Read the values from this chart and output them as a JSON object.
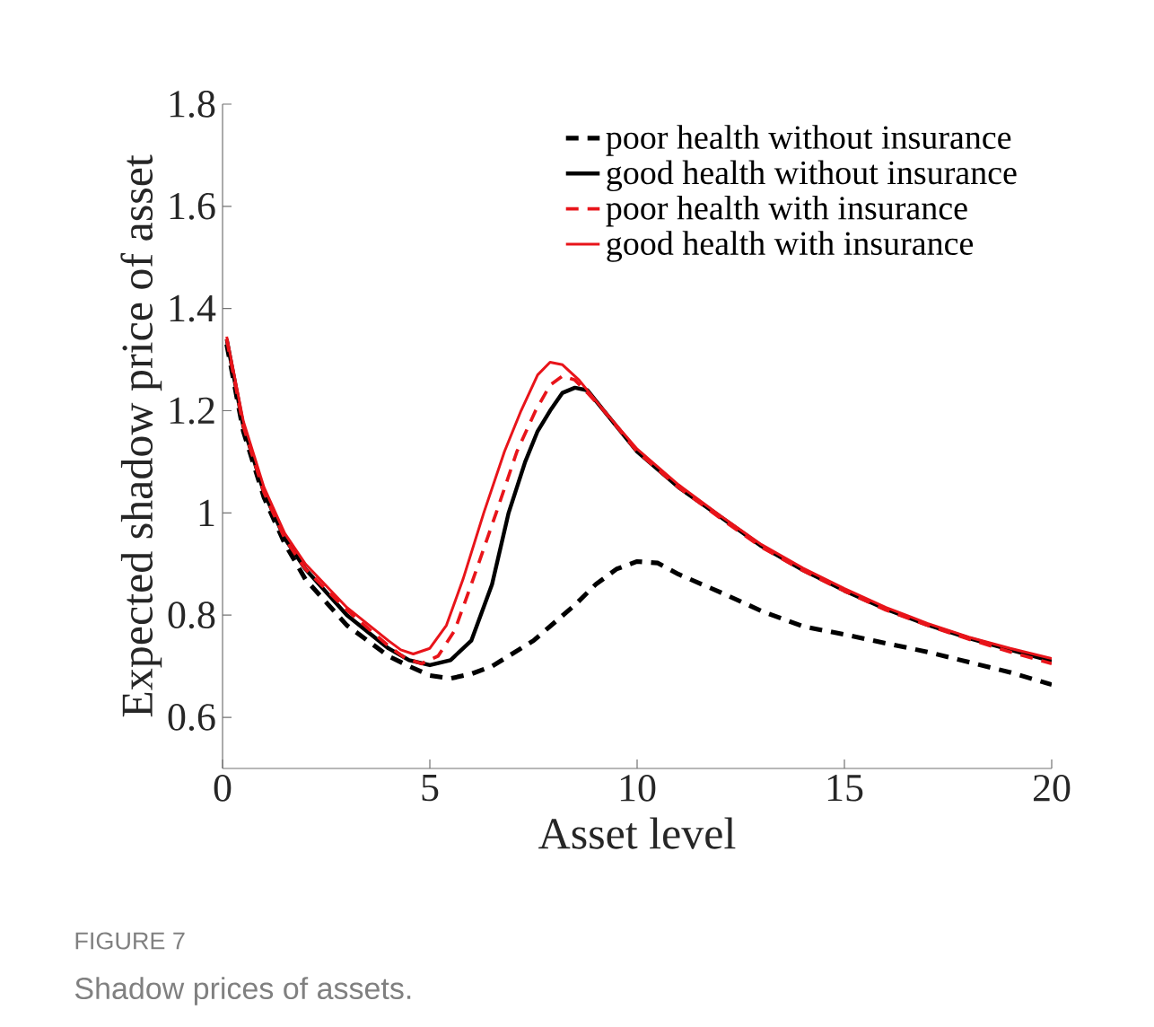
{
  "chart_data": {
    "type": "line",
    "xlabel": "Asset level",
    "ylabel": "Expected shadow price of asset",
    "annotations": [
      "FIGURE 7",
      "Shadow prices of assets."
    ],
    "xlim": [
      0,
      20
    ],
    "ylim": [
      0.5,
      1.8
    ],
    "xticks": [
      0,
      5,
      10,
      15,
      20
    ],
    "yticks": [
      0.6,
      0.8,
      1,
      1.2,
      1.4,
      1.6,
      1.8
    ],
    "legend": "top right",
    "grid": false,
    "series": [
      {
        "name": "poor health without insurance",
        "color": "#000000",
        "line_style": "dashed",
        "x": [
          0.1,
          0.5,
          1,
          1.5,
          2,
          3,
          4,
          4.5,
          5,
          5.5,
          6,
          6.5,
          7,
          7.5,
          8,
          8.5,
          9,
          9.5,
          10,
          10.5,
          11,
          12,
          13,
          14,
          15,
          16,
          17,
          18,
          19,
          20
        ],
        "values": [
          1.33,
          1.16,
          1.03,
          0.94,
          0.87,
          0.78,
          0.72,
          0.7,
          0.682,
          0.676,
          0.685,
          0.7,
          0.725,
          0.75,
          0.785,
          0.82,
          0.86,
          0.89,
          0.905,
          0.902,
          0.88,
          0.845,
          0.808,
          0.778,
          0.762,
          0.745,
          0.728,
          0.708,
          0.688,
          0.664
        ]
      },
      {
        "name": "good health without insurance",
        "color": "#000000",
        "line_style": "solid",
        "x": [
          0.1,
          0.5,
          1,
          1.5,
          2,
          3,
          4,
          4.5,
          5,
          5.5,
          6,
          6.5,
          6.9,
          7.3,
          7.6,
          7.9,
          8.2,
          8.5,
          8.8,
          9.2,
          10,
          11,
          12,
          13,
          14,
          15,
          16,
          17,
          18,
          19,
          20
        ],
        "values": [
          1.34,
          1.17,
          1.04,
          0.95,
          0.89,
          0.8,
          0.735,
          0.712,
          0.702,
          0.712,
          0.75,
          0.86,
          1.0,
          1.1,
          1.16,
          1.2,
          1.235,
          1.245,
          1.24,
          1.2,
          1.12,
          1.05,
          0.993,
          0.935,
          0.888,
          0.848,
          0.812,
          0.781,
          0.755,
          0.732,
          0.71
        ]
      },
      {
        "name": "poor health with insurance",
        "color": "#e8141a",
        "line_style": "dashed",
        "x": [
          0.1,
          0.5,
          1,
          1.5,
          2,
          3,
          4,
          4.4,
          4.8,
          5.2,
          5.6,
          6,
          6.3,
          6.6,
          7.1,
          7.55,
          7.9,
          8.2,
          8.5,
          8.8,
          9.2,
          10,
          11,
          12,
          13,
          14,
          15,
          16,
          17,
          18,
          19,
          20
        ],
        "values": [
          1.34,
          1.17,
          1.04,
          0.95,
          0.89,
          0.81,
          0.74,
          0.716,
          0.705,
          0.72,
          0.77,
          0.86,
          0.93,
          1.0,
          1.12,
          1.2,
          1.25,
          1.268,
          1.26,
          1.235,
          1.2,
          1.12,
          1.05,
          0.99,
          0.933,
          0.887,
          0.847,
          0.81,
          0.78,
          0.753,
          0.728,
          0.705
        ]
      },
      {
        "name": "good health with insurance",
        "color": "#e8141a",
        "line_style": "solid",
        "x": [
          0.1,
          0.5,
          1,
          1.5,
          2,
          3,
          4,
          4.3,
          4.6,
          5,
          5.4,
          5.8,
          6.3,
          6.8,
          7.2,
          7.6,
          7.9,
          8.2,
          8.6,
          9.2,
          10,
          11,
          12,
          13,
          14,
          15,
          16,
          17,
          18,
          19,
          20
        ],
        "values": [
          1.345,
          1.18,
          1.05,
          0.96,
          0.9,
          0.815,
          0.75,
          0.732,
          0.724,
          0.735,
          0.78,
          0.87,
          1.0,
          1.12,
          1.2,
          1.27,
          1.295,
          1.29,
          1.26,
          1.2,
          1.125,
          1.055,
          0.995,
          0.938,
          0.892,
          0.852,
          0.815,
          0.784,
          0.757,
          0.735,
          0.715
        ]
      }
    ]
  }
}
